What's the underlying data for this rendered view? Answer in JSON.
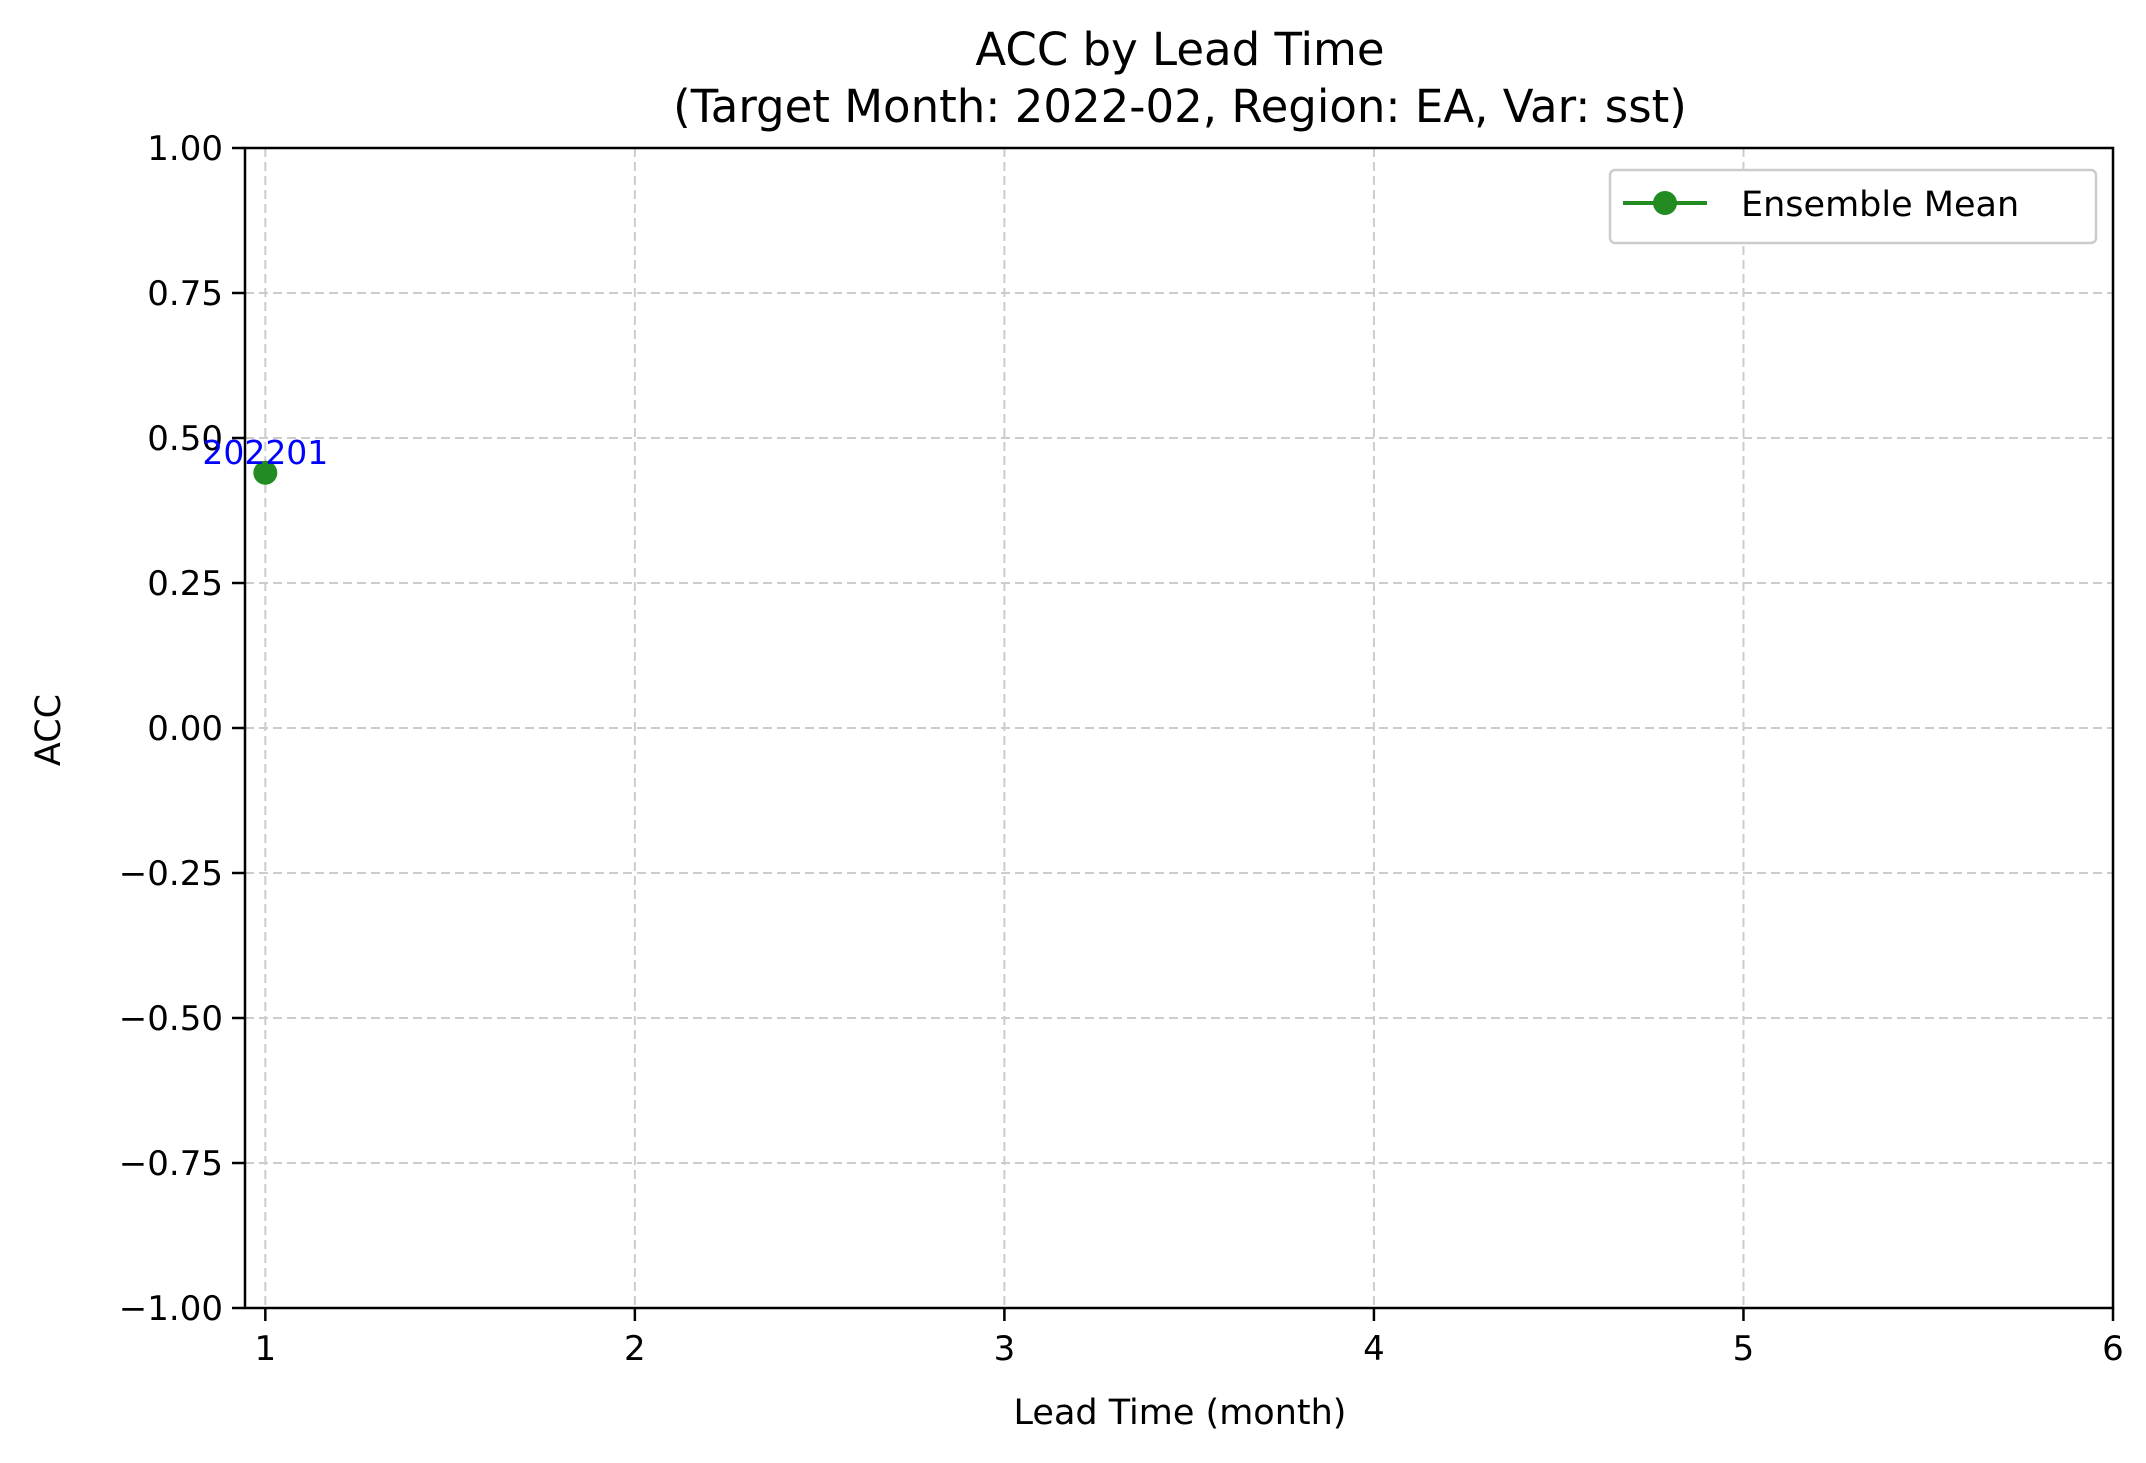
{
  "chart_data": {
    "type": "line",
    "title": "ACC by Lead Time",
    "subtitle": "(Target Month: 2022-02, Region: EA, Var: sst)",
    "xlabel": "Lead Time (month)",
    "ylabel": "ACC",
    "xlim": [
      0.945,
      6
    ],
    "ylim": [
      -1.0,
      1.0
    ],
    "xticks": [
      1,
      2,
      3,
      4,
      5,
      6
    ],
    "xtick_labels": [
      "1",
      "2",
      "3",
      "4",
      "5",
      "6"
    ],
    "yticks": [
      -1.0,
      -0.75,
      -0.5,
      -0.25,
      0.0,
      0.25,
      0.5,
      0.75,
      1.0
    ],
    "ytick_labels": [
      "−1.00",
      "−0.75",
      "−0.50",
      "−0.25",
      "0.00",
      "0.25",
      "0.50",
      "0.75",
      "1.00"
    ],
    "grid": true,
    "legend_position": "top-right",
    "series": [
      {
        "name": "Ensemble Mean",
        "color": "#228b22",
        "marker": "circle",
        "points": [
          {
            "x": 1,
            "y": 0.44,
            "label": "202201"
          }
        ]
      }
    ],
    "annotation_color": "#0000ff"
  }
}
